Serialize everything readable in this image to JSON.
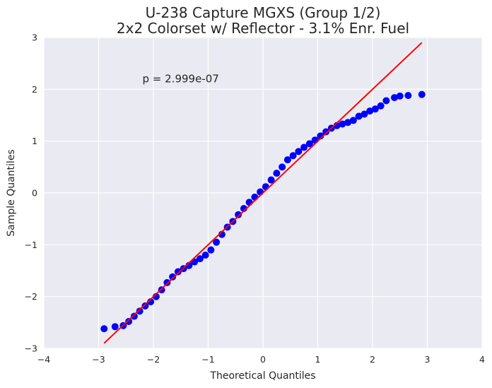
{
  "chart_data": {
    "type": "scatter",
    "title": [
      "U-238 Capture MGXS (Group 1/2)",
      "2x2 Colorset w/ Reflector - 3.1% Enr. Fuel"
    ],
    "xlabel": "Theoretical Quantiles",
    "ylabel": "Sample Quantiles",
    "xlim": [
      -4,
      4
    ],
    "ylim": [
      -3,
      3
    ],
    "xticks": [
      -4,
      -3,
      -2,
      -1,
      0,
      1,
      2,
      3,
      4
    ],
    "yticks": [
      -3,
      -2,
      -1,
      0,
      1,
      2,
      3
    ],
    "xtick_labels": [
      "−4",
      "−3",
      "−2",
      "−1",
      "0",
      "1",
      "2",
      "3",
      "4"
    ],
    "ytick_labels": [
      "−3",
      "−2",
      "−1",
      "0",
      "1",
      "2",
      "3"
    ],
    "grid": true,
    "background": "#eaeaf2",
    "annotation": {
      "text": "p = 2.999e-07",
      "x": -2.2,
      "y": 2.2
    },
    "fit_line": {
      "color": "#ff0000",
      "x": [
        -2.9,
        2.9
      ],
      "y": [
        -2.9,
        2.9
      ]
    },
    "points_color": "#0000ff",
    "series": [
      {
        "x": [
          -2.9,
          -2.7,
          -2.55,
          -2.45,
          -2.35,
          -2.25,
          -2.15,
          -2.05,
          -1.95,
          -1.85,
          -1.75,
          -1.65,
          -1.55,
          -1.45,
          -1.35,
          -1.25,
          -1.15,
          -1.05,
          -0.95,
          -0.85,
          -0.75,
          -0.65,
          -0.55,
          -0.45,
          -0.35,
          -0.25,
          -0.15,
          -0.05,
          0.05,
          0.15,
          0.25,
          0.35,
          0.45,
          0.55,
          0.65,
          0.75,
          0.85,
          0.95,
          1.05,
          1.15,
          1.25,
          1.35,
          1.45,
          1.55,
          1.65,
          1.75,
          1.85,
          1.95,
          2.05,
          2.15,
          2.25,
          2.4,
          2.5,
          2.65,
          2.9
        ],
        "y": [
          -2.62,
          -2.58,
          -2.56,
          -2.48,
          -2.38,
          -2.28,
          -2.18,
          -2.1,
          -2.0,
          -1.87,
          -1.73,
          -1.62,
          -1.52,
          -1.46,
          -1.4,
          -1.33,
          -1.27,
          -1.2,
          -1.1,
          -0.95,
          -0.8,
          -0.66,
          -0.55,
          -0.42,
          -0.3,
          -0.18,
          -0.08,
          0.02,
          0.12,
          0.25,
          0.38,
          0.5,
          0.64,
          0.72,
          0.8,
          0.88,
          0.95,
          1.02,
          1.1,
          1.18,
          1.25,
          1.3,
          1.33,
          1.36,
          1.4,
          1.48,
          1.52,
          1.58,
          1.62,
          1.68,
          1.78,
          1.84,
          1.87,
          1.88,
          1.9
        ]
      }
    ]
  }
}
